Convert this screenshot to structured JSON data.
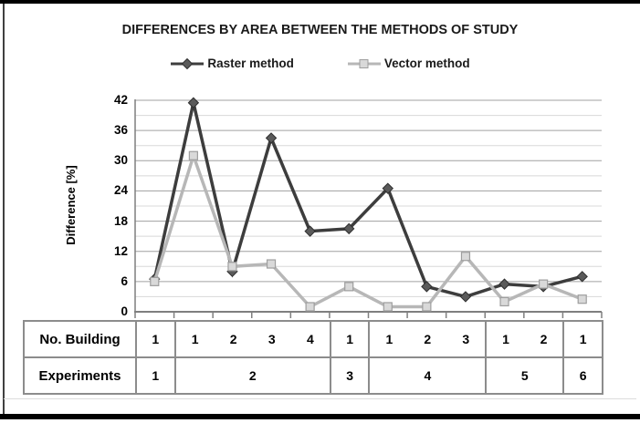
{
  "page": {
    "top_bar_color": "#000000",
    "bottom_bar_color": "#000000",
    "frame_border_color": "#404040",
    "background": "#ffffff"
  },
  "chart_data": {
    "type": "line",
    "title": "DIFFERENCES BY AREA BETWEEN THE METHODS OF STUDY",
    "ylabel": "Difference [%]",
    "xlabel": "",
    "ylim": [
      0,
      42
    ],
    "ytick_step": 6,
    "minor_gridline_step": 3,
    "ytick_labels": [
      "42",
      "36",
      "30",
      "24",
      "18",
      "12",
      "6",
      "0"
    ],
    "grid": true,
    "legend_position": "top",
    "categories": [
      "1",
      "1",
      "2",
      "3",
      "4",
      "1",
      "1",
      "2",
      "3",
      "1",
      "2",
      "1"
    ],
    "series": [
      {
        "name": "Raster method",
        "marker": "diamond",
        "line_color": "#3d3d3d",
        "marker_fill": "#5a5a5a",
        "marker_stroke": "#2e2e2e",
        "values": [
          6.5,
          41.5,
          8,
          34.5,
          16,
          16.5,
          24.5,
          5,
          3,
          5.5,
          5,
          7
        ]
      },
      {
        "name": "Vector method",
        "marker": "square",
        "line_color": "#b7b7b7",
        "marker_fill": "#d9d9d9",
        "marker_stroke": "#9e9e9e",
        "values": [
          6,
          31,
          9,
          9.5,
          1,
          5,
          1,
          1,
          11,
          2,
          5.5,
          2.5
        ]
      }
    ],
    "colors": {
      "major_gridline": "#a0a0a0",
      "minor_gridline": "#d8d8d8",
      "axis": "#7f7f7f"
    }
  },
  "table": {
    "row1_label": "No. Building",
    "row2_label": "Experiments",
    "groups": [
      {
        "experiment": "1",
        "buildings": [
          "1"
        ]
      },
      {
        "experiment": "2",
        "buildings": [
          "1",
          "2",
          "3",
          "4"
        ]
      },
      {
        "experiment": "3",
        "buildings": [
          "1"
        ]
      },
      {
        "experiment": "4",
        "buildings": [
          "1",
          "2",
          "3"
        ]
      },
      {
        "experiment": "5",
        "buildings": [
          "1",
          "2"
        ]
      },
      {
        "experiment": "6",
        "buildings": [
          "1"
        ]
      }
    ]
  }
}
